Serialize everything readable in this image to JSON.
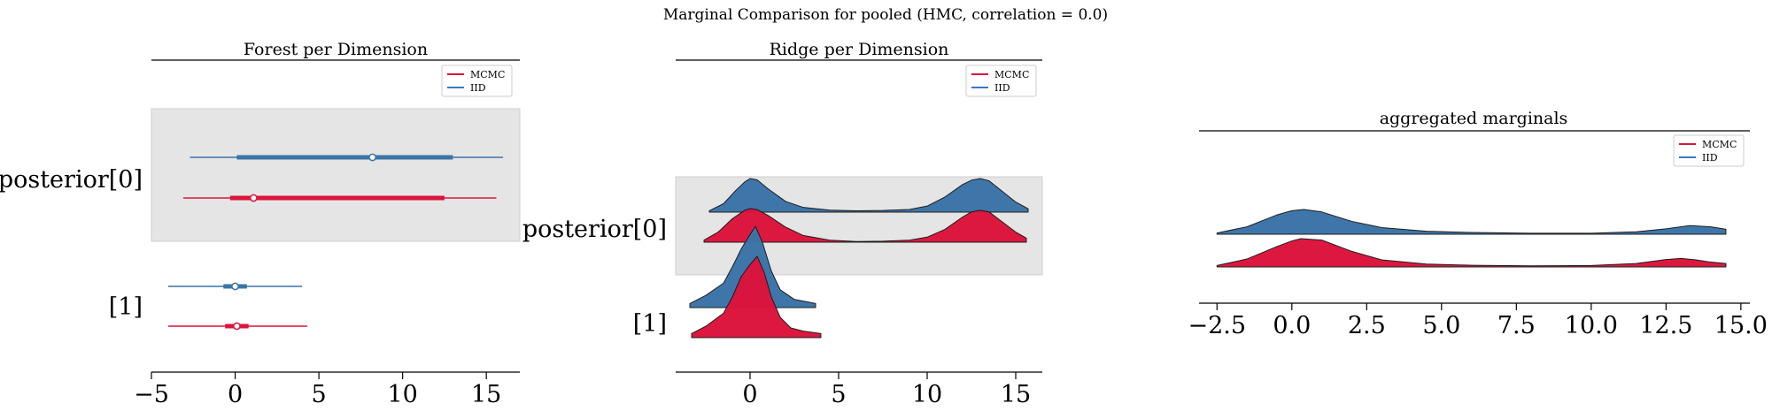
{
  "suptitle": "Marginal Comparison for pooled (HMC, correlation = 0.0)",
  "colors": {
    "mcmc": "#dc143c",
    "iid": "#3b74a8",
    "iid_line": "#3a78c0",
    "band": "#e5e5e5"
  },
  "legend": {
    "mcmc": "MCMC",
    "iid": "IID"
  },
  "chart_data": [
    {
      "type": "forest",
      "title": "Forest per Dimension",
      "xlim": [
        -5,
        17
      ],
      "xticks": [
        -5,
        0,
        5,
        10,
        15
      ],
      "xtick_labels": [
        "−5",
        "0",
        "5",
        "10",
        "15"
      ],
      "rows": [
        {
          "label": "posterior[0]",
          "series": [
            {
              "name": "IID",
              "range": [
                -2.7,
                16.0
              ],
              "hdi": [
                0.1,
                13.0
              ],
              "point": 8.2
            },
            {
              "name": "MCMC",
              "range": [
                -3.1,
                15.6
              ],
              "hdi": [
                -0.3,
                12.5
              ],
              "point": 1.1
            }
          ]
        },
        {
          "label": "[1]",
          "series": [
            {
              "name": "IID",
              "range": [
                -4.0,
                4.0
              ],
              "hdi": [
                -0.7,
                0.7
              ],
              "point": 0.0
            },
            {
              "name": "MCMC",
              "range": [
                -4.0,
                4.3
              ],
              "hdi": [
                -0.6,
                0.8
              ],
              "point": 0.1
            }
          ]
        }
      ]
    },
    {
      "type": "ridge",
      "title": "Ridge per Dimension",
      "xlim": [
        -4.2,
        16.5
      ],
      "xticks": [
        0,
        5,
        10,
        15
      ],
      "xtick_labels": [
        "0",
        "5",
        "10",
        "15"
      ],
      "rows": [
        {
          "label": "posterior[0]",
          "series": [
            {
              "name": "IID",
              "x": [
                -2.3,
                -1.5,
                -0.8,
                -0.3,
                0.0,
                0.4,
                1.0,
                2.0,
                3.0,
                4.5,
                6.0,
                7.5,
                9.0,
                10.0,
                11.0,
                12.0,
                12.5,
                13.0,
                13.5,
                14.0,
                15.0,
                15.7
              ],
              "y": [
                0.04,
                0.25,
                0.65,
                0.9,
                1.0,
                0.96,
                0.7,
                0.32,
                0.14,
                0.06,
                0.04,
                0.05,
                0.08,
                0.18,
                0.45,
                0.82,
                0.95,
                1.0,
                0.93,
                0.72,
                0.3,
                0.1
              ]
            },
            {
              "name": "MCMC",
              "x": [
                -2.6,
                -1.8,
                -1.0,
                -0.3,
                0.0,
                0.4,
                1.0,
                2.0,
                3.0,
                4.5,
                6.0,
                7.5,
                9.0,
                10.0,
                11.0,
                12.0,
                12.5,
                13.0,
                13.5,
                14.0,
                15.0,
                15.6
              ],
              "y": [
                0.06,
                0.3,
                0.7,
                0.95,
                1.0,
                0.97,
                0.8,
                0.45,
                0.2,
                0.06,
                0.02,
                0.03,
                0.06,
                0.15,
                0.38,
                0.75,
                0.9,
                0.95,
                0.9,
                0.7,
                0.3,
                0.12
              ]
            }
          ]
        },
        {
          "label": "[1]",
          "series": [
            {
              "name": "IID",
              "x": [
                -3.4,
                -2.5,
                -1.5,
                -1.0,
                -0.5,
                0.0,
                0.3,
                0.7,
                1.2,
                1.7,
                2.5,
                3.7
              ],
              "y": [
                0.05,
                0.15,
                0.3,
                0.5,
                0.72,
                0.9,
                1.0,
                0.8,
                0.45,
                0.22,
                0.1,
                0.05
              ]
            },
            {
              "name": "MCMC",
              "x": [
                -3.3,
                -2.5,
                -1.5,
                -1.0,
                -0.5,
                0.0,
                0.4,
                0.8,
                1.2,
                1.7,
                2.3,
                3.0,
                4.0
              ],
              "y": [
                0.05,
                0.14,
                0.3,
                0.5,
                0.75,
                0.9,
                1.0,
                0.8,
                0.5,
                0.25,
                0.12,
                0.08,
                0.05
              ]
            }
          ]
        }
      ]
    },
    {
      "type": "ridge",
      "title": "aggregated marginals",
      "xlim": [
        -3.1,
        15.3
      ],
      "xticks": [
        -2.5,
        0.0,
        2.5,
        5.0,
        7.5,
        10.0,
        12.5,
        15.0
      ],
      "xtick_labels": [
        "−2.5",
        "0.0",
        "2.5",
        "5.0",
        "7.5",
        "10.0",
        "12.5",
        "15.0"
      ],
      "rows": [
        {
          "label": "",
          "series": [
            {
              "name": "IID",
              "x": [
                -2.5,
                -1.5,
                -0.5,
                0.0,
                0.4,
                1.0,
                2.0,
                3.0,
                4.5,
                6.0,
                8.0,
                10.0,
                11.5,
                12.5,
                13.3,
                14.0,
                14.5
              ],
              "y": [
                0.05,
                0.3,
                0.78,
                0.95,
                1.0,
                0.9,
                0.52,
                0.27,
                0.12,
                0.07,
                0.04,
                0.04,
                0.1,
                0.22,
                0.35,
                0.3,
                0.2
              ]
            },
            {
              "name": "MCMC",
              "x": [
                -2.5,
                -1.5,
                -0.5,
                0.0,
                0.3,
                1.0,
                2.0,
                3.0,
                4.5,
                6.0,
                8.0,
                10.0,
                11.5,
                12.5,
                13.0,
                13.5,
                14.0,
                14.5
              ],
              "y": [
                0.05,
                0.28,
                0.72,
                0.92,
                1.0,
                0.95,
                0.55,
                0.25,
                0.1,
                0.06,
                0.04,
                0.05,
                0.12,
                0.26,
                0.3,
                0.25,
                0.17,
                0.12
              ]
            }
          ]
        }
      ]
    }
  ]
}
